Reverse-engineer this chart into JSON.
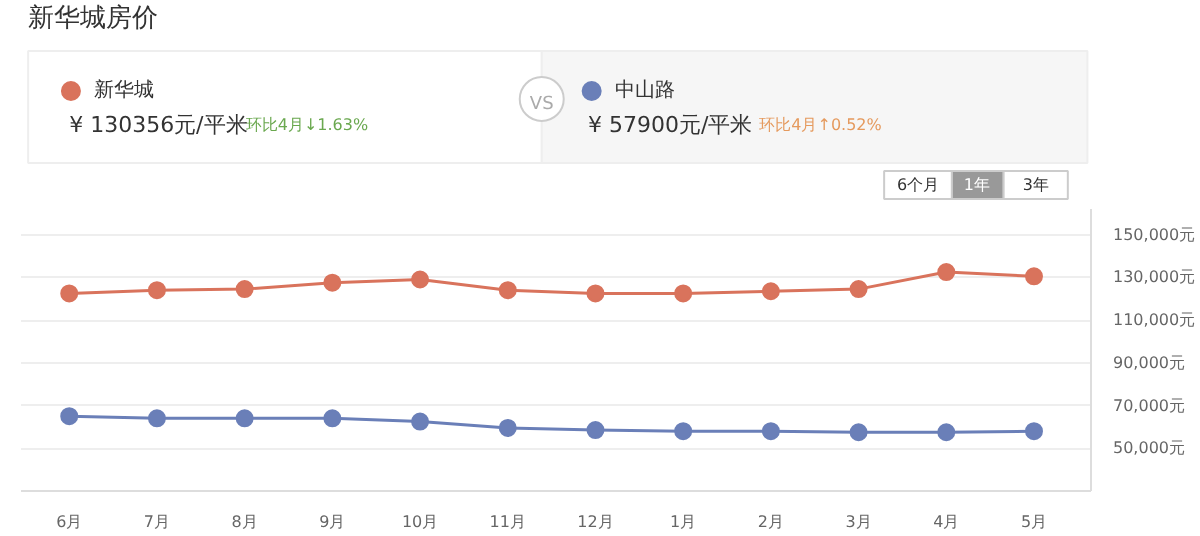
{
  "chart_data": {
    "type": "line",
    "title": "新华城房价",
    "categories": [
      "6月",
      "7月",
      "8月",
      "9月",
      "10月",
      "11月",
      "12月",
      "1月",
      "2月",
      "3月",
      "4月",
      "5月"
    ],
    "series": [
      {
        "name": "新华城",
        "color": "#d9735c",
        "values": [
          122500,
          124000,
          124500,
          127500,
          129000,
          124000,
          122500,
          122500,
          123500,
          124500,
          132500,
          130500
        ]
      },
      {
        "name": "中山路",
        "color": "#6a7fb8",
        "values": [
          65000,
          64000,
          64000,
          64000,
          62500,
          59500,
          58500,
          58000,
          58000,
          57500,
          57500,
          58000
        ]
      }
    ],
    "annotations": [
      "¥ 130356元/平米",
      "环比4月↓1.63%",
      "¥ 57900元/平米",
      "环比4月↑0.52%",
      "VS",
      "6个月",
      "1年",
      "3年"
    ],
    "ylim": [
      30000,
      162000
    ],
    "yticks": [
      {
        "value": 50000,
        "label": "50,000元"
      },
      {
        "value": 70000,
        "label": "70,000元"
      },
      {
        "value": 90000,
        "label": "90,000元"
      },
      {
        "value": 110000,
        "label": "110,000元"
      },
      {
        "value": 130000,
        "label": "130,000元"
      },
      {
        "value": 150000,
        "label": "150,000元"
      }
    ],
    "grid": "y",
    "legend": "top",
    "marker": "circle",
    "line_style": "solid"
  }
}
